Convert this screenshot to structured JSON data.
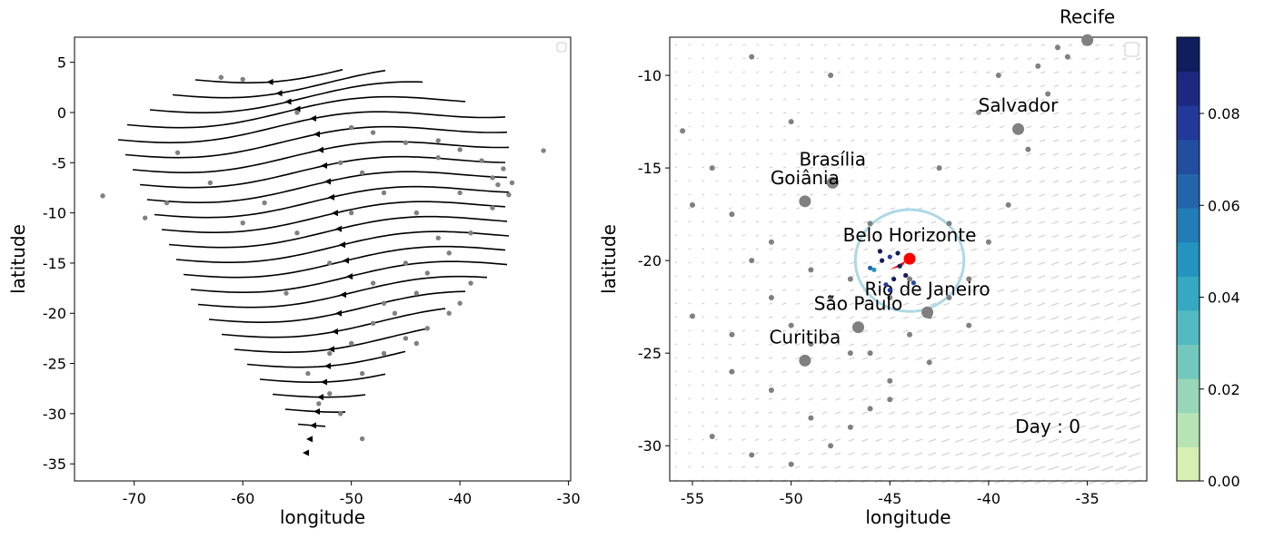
{
  "chart_data": [
    {
      "type": "scatter",
      "xlabel": "longitude",
      "ylabel": "latitude",
      "xlim": [
        -75.5,
        -29.8
      ],
      "ylim": [
        -36.7,
        7.5
      ],
      "xticks": [
        -70,
        -60,
        -50,
        -40,
        -30
      ],
      "yticks": [
        5,
        0,
        -5,
        -10,
        -15,
        -20,
        -25,
        -30,
        -35
      ],
      "series": [
        {
          "color": "#808080",
          "x": [
            -72.9,
            -67,
            -62,
            -60,
            -55,
            -50,
            -48,
            -45,
            -42,
            -40,
            -38,
            -36,
            -35.2,
            -35.5,
            -37,
            -39,
            -41,
            -43,
            -44,
            -46,
            -48,
            -50,
            -52,
            -54,
            -53,
            -51,
            -49,
            -47,
            -45,
            -43,
            -41,
            -40,
            -39,
            -42,
            -44,
            -47,
            -49,
            -51,
            -50,
            -52,
            -55,
            -58,
            -60,
            -63,
            -66,
            -69,
            -56,
            -48,
            -40,
            -37,
            -36.5,
            -32.3,
            -42,
            -45,
            -49,
            -52,
            -47,
            -44
          ],
          "y": [
            -8.3,
            -9,
            3.5,
            3.3,
            0,
            -1.5,
            -2,
            -3,
            -2.8,
            -3.7,
            -4.8,
            -5.6,
            -7,
            -8.2,
            -9.5,
            -12,
            -14,
            -16,
            -18,
            -20,
            -21,
            -23,
            -24,
            -26,
            -29,
            -30,
            -32.5,
            -24,
            -22.5,
            -21.5,
            -20,
            -19,
            -17,
            -12.5,
            -10,
            -8,
            -6,
            -5,
            -10,
            -15,
            -12,
            -9,
            -11,
            -7,
            -4,
            -10.5,
            -18,
            -17,
            -8,
            -6.5,
            -7.2,
            -3.8,
            -4.5,
            -15,
            -26,
            -28,
            -19,
            -23
          ]
        }
      ]
    },
    {
      "type": "scatter",
      "xlabel": "longitude",
      "ylabel": "latitude",
      "xlim": [
        -56.15,
        -31.99
      ],
      "ylim": [
        -31.9,
        -7.94
      ],
      "xticks": [
        -55,
        -50,
        -45,
        -40,
        -35
      ],
      "yticks": [
        -10,
        -15,
        -20,
        -25,
        -30
      ],
      "series": [
        {
          "color": "#808080",
          "x": [
            -55.5,
            -54,
            -53,
            -52,
            -51,
            -50,
            -49,
            -48,
            -47,
            -46,
            -45,
            -44,
            -43,
            -42,
            -41,
            -40,
            -39,
            -38,
            -37,
            -36,
            -53,
            -51,
            -49,
            -47,
            -45,
            -43,
            -41,
            -54,
            -52,
            -50,
            -48,
            -46,
            -44,
            -42,
            -55,
            -53,
            -51,
            -49,
            -47,
            -45,
            -46,
            -42.5,
            -40.5,
            -39.5,
            -37.5,
            -36.5,
            -48,
            -52,
            -55,
            -50
          ],
          "y": [
            -13,
            -15,
            -17.5,
            -20,
            -22,
            -23.5,
            -24.5,
            -22,
            -21,
            -25,
            -26.5,
            -24,
            -23,
            -22,
            -21,
            -19,
            -17,
            -14,
            -11,
            -9,
            -26,
            -27,
            -28.5,
            -29,
            -27.5,
            -25.5,
            -23.5,
            -29.5,
            -30.5,
            -31,
            -30,
            -28,
            -21,
            -18,
            -23,
            -24,
            -19,
            -20.5,
            -25,
            -22,
            -18,
            -15,
            -12,
            -10,
            -9.5,
            -8.5,
            -10,
            -9,
            -17,
            -12.5
          ]
        },
        {
          "labels": [
            "Recife",
            "Salvador",
            "Brasília",
            "Goiânia",
            "Belo Horizonte",
            "Rio de Janeiro",
            "São Paulo",
            "Curitiba"
          ],
          "colors": [
            "#808080",
            "#808080",
            "#808080",
            "#808080",
            "#ff0000",
            "#808080",
            "#808080",
            "#808080"
          ],
          "x": [
            -35,
            -38.5,
            -47.9,
            -49.3,
            -44.0,
            -43.1,
            -46.6,
            -49.3
          ],
          "y": [
            -8.1,
            -12.9,
            -15.8,
            -16.8,
            -19.9,
            -22.8,
            -23.6,
            -25.4
          ]
        },
        {
          "x": [
            -45.5,
            -45,
            -44.5,
            -45.8,
            -44.8,
            -44.2,
            -45.2,
            -46,
            -44.6,
            -45.4,
            -43.8,
            -45
          ],
          "y": [
            -19.5,
            -19.8,
            -20.3,
            -20.5,
            -21,
            -20.8,
            -21.3,
            -20.4,
            -19.6,
            -20,
            -21.2,
            -21.6
          ],
          "values": [
            0.09,
            0.08,
            0.09,
            0.05,
            0.09,
            0.09,
            0.08,
            0.06,
            0.09,
            0.09,
            0.07,
            0.08
          ]
        }
      ],
      "circle": {
        "x": -44,
        "y": -20,
        "r": 2.75,
        "color": "#add8e6"
      },
      "annotation": {
        "text": "Day : 0",
        "x": -37,
        "y": -29.3
      },
      "colorbar": {
        "lim": [
          0,
          0.0966
        ],
        "ticks": [
          {
            "value": 0,
            "label": "0.00"
          },
          0.02,
          0.04,
          0.06,
          0.08
        ],
        "colors": [
          "#d6efb3",
          "#b8e3b5",
          "#97d6b9",
          "#73c8bd",
          "#52bbc1",
          "#36a8c1",
          "#2493c0",
          "#217cb7",
          "#2365ab",
          "#234ea0",
          "#22399a",
          "#1b2a80",
          "#0f1f5e"
        ]
      }
    }
  ]
}
